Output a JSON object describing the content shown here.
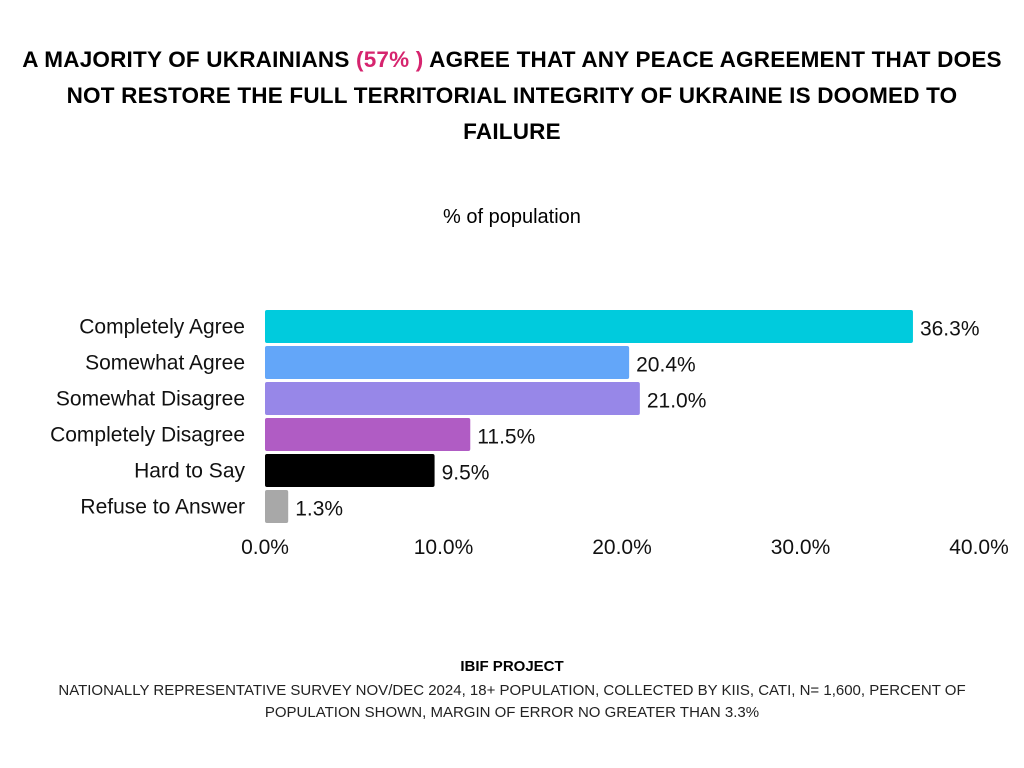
{
  "title": {
    "before": "A MAJORITY OF UKRAINIANS ",
    "highlight": "(57% )",
    "after": " AGREE THAT ANY PEACE AGREEMENT THAT DOES NOT RESTORE THE FULL TERRITORIAL INTEGRITY OF UKRAINE IS DOOMED TO FAILURE"
  },
  "chart_data": {
    "type": "bar",
    "orientation": "horizontal",
    "title": "A MAJORITY OF UKRAINIANS (57% ) AGREE THAT ANY PEACE AGREEMENT THAT DOES NOT RESTORE THE FULL TERRITORIAL INTEGRITY OF UKRAINE IS DOOMED TO FAILURE",
    "subtitle": "% of population",
    "categories": [
      "Completely Agree",
      "Somewhat Agree",
      "Somewhat Disagree",
      "Completely Disagree",
      "Hard to Say",
      "Refuse to Answer"
    ],
    "values": [
      36.3,
      20.4,
      21.0,
      11.5,
      9.5,
      1.3
    ],
    "value_labels": [
      "36.3%",
      "20.4%",
      "21.0%",
      "11.5%",
      "9.5%",
      "1.3%"
    ],
    "colors": [
      "#00cbdd",
      "#63a6f9",
      "#9787e8",
      "#b05cc4",
      "#000000",
      "#a8a8a8"
    ],
    "xlim": [
      0,
      40
    ],
    "xticks": [
      0,
      10,
      20,
      30,
      40
    ],
    "xtick_labels": [
      "0.0%",
      "10.0%",
      "20.0%",
      "30.0%",
      "40.0%"
    ],
    "grid": false,
    "xlabel": "",
    "ylabel": ""
  },
  "footer": {
    "source": "IBIF PROJECT",
    "note": "NATIONALLY REPRESENTATIVE SURVEY NOV/DEC 2024, 18+ POPULATION, COLLECTED BY KIIS, CATI, N= 1,600, PERCENT OF POPULATION SHOWN, MARGIN OF ERROR NO GREATER THAN 3.3%"
  }
}
